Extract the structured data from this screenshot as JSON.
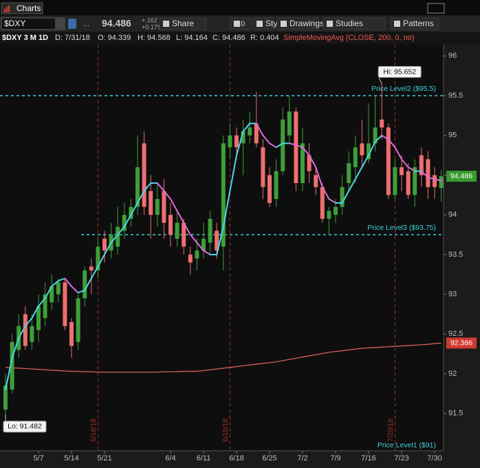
{
  "window": {
    "tab": "Charts"
  },
  "toolbar": {
    "symbol": "$DXY",
    "more": "...",
    "last": "94.486",
    "change": "+.162",
    "change_pct": "+0.17%",
    "buttons": [
      "Share",
      "D",
      "Style",
      "Drawings",
      "Studies",
      "Patterns"
    ]
  },
  "info": {
    "title": "$DXY 3 M 1D",
    "date": "D: 7/31/18",
    "open": "O: 94.339",
    "high": "H: 94.568",
    "low": "L: 94.164",
    "close": "C: 94.486",
    "range": "R: 0.404"
  },
  "chart_data": {
    "type": "candlestick",
    "categories": [
      null,
      null,
      null,
      null,
      null,
      "5/7",
      null,
      null,
      null,
      null,
      "5/14",
      null,
      null,
      null,
      null,
      "5/21",
      null,
      null,
      null,
      null,
      null,
      null,
      null,
      null,
      null,
      "6/4",
      null,
      null,
      null,
      null,
      "6/11",
      null,
      null,
      null,
      null,
      "6/18",
      null,
      null,
      null,
      null,
      "6/25",
      null,
      null,
      null,
      null,
      "7/2",
      null,
      null,
      null,
      null,
      "7/9",
      null,
      null,
      null,
      null,
      "7/16",
      null,
      null,
      null,
      null,
      "7/23",
      null,
      null,
      null,
      null,
      "7/30",
      null
    ],
    "open": [
      91.55,
      91.8,
      92.3,
      92.75,
      92.4,
      92.55,
      92.7,
      92.9,
      93.0,
      93.15,
      92.65,
      92.4,
      92.95,
      93.35,
      93.3,
      93.7,
      93.55,
      93.6,
      93.8,
      93.95,
      94.1,
      94.9,
      94.3,
      94.0,
      94.3,
      94.0,
      93.7,
      93.9,
      93.5,
      93.45,
      93.55,
      93.65,
      93.8,
      93.6,
      94.85,
      95.0,
      94.9,
      95.0,
      95.15,
      94.85,
      94.5,
      94.2,
      94.55,
      95.0,
      95.3,
      94.4,
      94.75,
      94.5,
      94.35,
      93.95,
      94.0,
      94.1,
      94.4,
      94.6,
      94.9,
      94.7,
      94.9,
      95.2,
      95.1,
      94.25,
      94.6,
      94.55,
      94.25,
      94.75,
      94.7,
      94.5,
      94.339
    ],
    "high": [
      92.0,
      92.5,
      92.75,
      92.85,
      92.75,
      93.0,
      93.15,
      93.25,
      93.2,
      93.2,
      92.7,
      93.0,
      93.35,
      93.45,
      93.7,
      93.8,
      93.9,
      94.1,
      94.15,
      94.2,
      95.0,
      95.05,
      94.5,
      94.4,
      94.45,
      94.15,
      94.05,
      93.95,
      93.6,
      93.7,
      93.9,
      94.05,
      93.9,
      95.0,
      95.15,
      95.1,
      95.2,
      95.3,
      95.55,
      94.95,
      94.6,
      94.7,
      95.35,
      95.5,
      95.35,
      95.1,
      94.9,
      94.6,
      94.4,
      94.1,
      94.2,
      94.5,
      94.8,
      95.0,
      95.2,
      95.4,
      95.5,
      95.652,
      95.15,
      94.7,
      94.75,
      94.65,
      94.7,
      94.85,
      94.8,
      94.6,
      94.568
    ],
    "low": [
      91.482,
      91.75,
      92.2,
      92.3,
      92.3,
      92.4,
      92.6,
      92.8,
      92.9,
      92.55,
      92.2,
      92.3,
      92.85,
      93.0,
      93.2,
      93.4,
      93.45,
      93.5,
      93.7,
      93.85,
      94.0,
      94.0,
      93.7,
      93.85,
      93.7,
      93.6,
      93.6,
      93.5,
      93.25,
      93.3,
      93.45,
      93.5,
      93.45,
      93.3,
      94.7,
      94.7,
      94.5,
      94.9,
      94.85,
      94.2,
      94.1,
      94.1,
      94.5,
      94.9,
      94.3,
      94.3,
      94.4,
      94.25,
      93.9,
      93.75,
      93.9,
      94.0,
      94.3,
      94.4,
      94.6,
      94.65,
      94.8,
      94.95,
      94.2,
      94.2,
      94.3,
      94.2,
      94.1,
      94.35,
      94.2,
      94.2,
      94.164
    ],
    "close": [
      91.85,
      92.4,
      92.6,
      92.35,
      92.6,
      92.85,
      93.0,
      93.1,
      93.15,
      92.6,
      92.35,
      92.95,
      93.3,
      93.3,
      93.6,
      93.55,
      93.75,
      93.85,
      94.0,
      94.1,
      94.6,
      94.1,
      94.0,
      94.2,
      93.9,
      93.75,
      93.9,
      93.6,
      93.4,
      93.55,
      93.7,
      93.95,
      93.55,
      94.9,
      95.0,
      94.85,
      95.05,
      95.1,
      94.9,
      94.35,
      94.15,
      94.55,
      95.2,
      95.3,
      94.4,
      94.9,
      94.55,
      94.35,
      93.95,
      94.05,
      94.1,
      94.35,
      94.65,
      94.85,
      94.75,
      94.9,
      95.1,
      95.1,
      94.25,
      94.6,
      94.5,
      94.25,
      94.6,
      94.5,
      94.35,
      94.35,
      94.486
    ],
    "up_color": "#3f9e3a",
    "down_color": "#ee6f6f",
    "ma": {
      "up_color": "#4dd8e6",
      "down_color": "#e06ae0",
      "values": [
        91.8,
        92.2,
        92.45,
        92.6,
        92.7,
        92.85,
        92.95,
        93.1,
        93.17,
        93.2,
        93.1,
        93.02,
        93.05,
        93.2,
        93.35,
        93.5,
        93.65,
        93.75,
        93.85,
        94.0,
        94.15,
        94.3,
        94.4,
        94.4,
        94.3,
        94.2,
        94.05,
        93.9,
        93.75,
        93.65,
        93.55,
        93.5,
        93.5,
        93.85,
        94.3,
        94.75,
        95.05,
        95.15,
        95.15,
        95.0,
        94.9,
        94.85,
        94.9,
        94.9,
        94.88,
        94.85,
        94.75,
        94.6,
        94.35,
        94.2,
        94.15,
        94.15,
        94.3,
        94.45,
        94.6,
        94.75,
        94.92,
        95.0,
        94.95,
        94.85,
        94.7,
        94.6,
        94.55,
        94.55,
        94.47,
        94.45,
        94.43
      ]
    },
    "sma200": {
      "name": "SimpleMovingAvg (CLOSE, 200, 0, no)",
      "color": "#d9605a",
      "values": [
        92.08,
        92.075,
        92.07,
        92.065,
        92.06,
        92.055,
        92.05,
        92.045,
        92.04,
        92.035,
        92.03,
        92.03,
        92.025,
        92.025,
        92.02,
        92.02,
        92.02,
        92.02,
        92.02,
        92.02,
        92.02,
        92.02,
        92.02,
        92.02,
        92.025,
        92.025,
        92.025,
        92.03,
        92.03,
        92.03,
        92.04,
        92.05,
        92.06,
        92.07,
        92.08,
        92.09,
        92.1,
        92.11,
        92.12,
        92.13,
        92.14,
        92.15,
        92.165,
        92.18,
        92.195,
        92.21,
        92.225,
        92.24,
        92.255,
        92.27,
        92.28,
        92.29,
        92.3,
        92.31,
        92.32,
        92.325,
        92.33,
        92.335,
        92.34,
        92.345,
        92.35,
        92.355,
        92.36,
        92.365,
        92.37,
        92.38,
        92.386
      ]
    },
    "levels": [
      {
        "value": 95.5,
        "label": "Price Level2 ($95.5)"
      },
      {
        "value": 93.75,
        "label": "Price Level3 ($93.75)"
      },
      {
        "value": 91,
        "label": "Price Level1 ($91)"
      }
    ],
    "level_color": "#3fd0e0",
    "markers": [
      {
        "label": "5/18/18"
      },
      {
        "label": "6/15/18"
      },
      {
        "label": "7/20/18"
      }
    ],
    "marker_color": "#a0302a",
    "high_label": "Hi: 95.652",
    "low_label": "Lo: 91.482",
    "ylim": [
      91.03,
      96.15
    ],
    "yticks": [
      91.5,
      92,
      92.5,
      93,
      93.5,
      94,
      94.5,
      95,
      95.5,
      96
    ]
  }
}
